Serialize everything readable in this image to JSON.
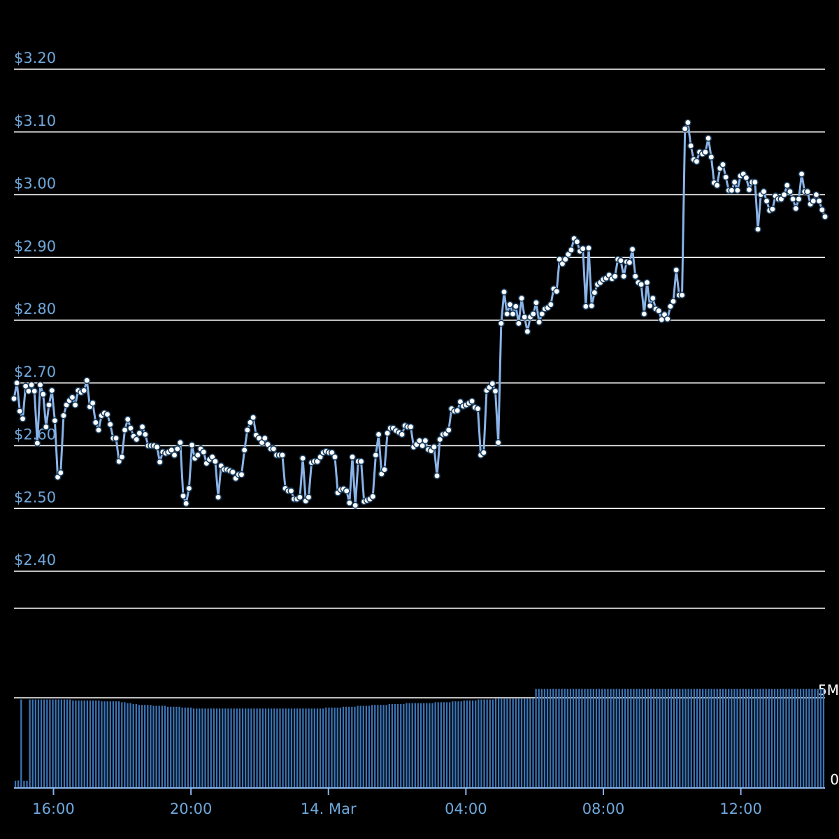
{
  "chart_data": {
    "type": "line",
    "title": "",
    "xlabel": "",
    "ylabel": "",
    "x_ticks": [
      "16:00",
      "20:00",
      "14. Mar",
      "04:00",
      "08:00",
      "12:00"
    ],
    "x_tick_hours": [
      16,
      20,
      24,
      28,
      32,
      36
    ],
    "x_range_hours": [
      14.85,
      38.45
    ],
    "grid": true,
    "price_axis": {
      "ticks": [
        "$2.40",
        "$2.50",
        "$2.60",
        "$2.70",
        "$2.80",
        "$2.90",
        "$3.00",
        "$3.10",
        "$3.20"
      ],
      "tick_values": [
        2.4,
        2.5,
        2.6,
        2.7,
        2.8,
        2.9,
        3.0,
        3.1,
        3.2
      ],
      "ylim": [
        2.35,
        3.25
      ]
    },
    "volume_axis": {
      "ticks": [
        "0",
        "5M"
      ],
      "tick_values": [
        0,
        5000000
      ],
      "ylim": [
        0,
        10000000
      ]
    },
    "colors": {
      "background": "#000000",
      "price_line": "#8ab4e8",
      "point_fill": "#ffffff",
      "volume_bar": "#3a75b8",
      "tick_label": "#6fa8dc",
      "grid": "#ffffff"
    },
    "series": [
      {
        "values": [
          2.675,
          2.7,
          2.655,
          2.643,
          2.695,
          2.687,
          2.697,
          2.687,
          2.604,
          2.697,
          2.682,
          2.63,
          2.665,
          2.688,
          2.64,
          2.55,
          2.557,
          2.648,
          2.665,
          2.672,
          2.677,
          2.665,
          2.688,
          2.685,
          2.688,
          2.704,
          2.662,
          2.668,
          2.637,
          2.625,
          2.648,
          2.652,
          2.65,
          2.634,
          2.612,
          2.612,
          2.575,
          2.582,
          2.625,
          2.642,
          2.628,
          2.615,
          2.61,
          2.62,
          2.63,
          2.618,
          2.6,
          2.6,
          2.6,
          2.598,
          2.574,
          2.59,
          2.588,
          2.59,
          2.593,
          2.585,
          2.595,
          2.605,
          2.52,
          2.508,
          2.532,
          2.601,
          2.58,
          2.585,
          2.595,
          2.59,
          2.572,
          2.578,
          2.582,
          2.575,
          2.518,
          2.568,
          2.562,
          2.562,
          2.56,
          2.558,
          2.548,
          2.554,
          2.554,
          2.593,
          2.625,
          2.637,
          2.645,
          2.617,
          2.612,
          2.605,
          2.612,
          2.602,
          2.595,
          2.595,
          2.585,
          2.585,
          2.585,
          2.532,
          2.528,
          2.528,
          2.515,
          2.515,
          2.518,
          2.58,
          2.512,
          2.518,
          2.573,
          2.575,
          2.575,
          2.582,
          2.589,
          2.591,
          2.589,
          2.589,
          2.582,
          2.525,
          2.53,
          2.531,
          2.528,
          2.509,
          2.582,
          2.505,
          2.575,
          2.575,
          2.511,
          2.513,
          2.515,
          2.519,
          2.585,
          2.618,
          2.555,
          2.562,
          2.62,
          2.628,
          2.628,
          2.624,
          2.621,
          2.618,
          2.632,
          2.63,
          2.63,
          2.598,
          2.602,
          2.608,
          2.6,
          2.608,
          2.594,
          2.592,
          2.598,
          2.552,
          2.61,
          2.618,
          2.619,
          2.625,
          2.659,
          2.655,
          2.656,
          2.67,
          2.663,
          2.665,
          2.668,
          2.671,
          2.661,
          2.659,
          2.585,
          2.589,
          2.688,
          2.693,
          2.699,
          2.687,
          2.605,
          2.795,
          2.845,
          2.81,
          2.825,
          2.81,
          2.822,
          2.795,
          2.835,
          2.805,
          2.782,
          2.805,
          2.81,
          2.828,
          2.797,
          2.81,
          2.818,
          2.82,
          2.825,
          2.85,
          2.846,
          2.897,
          2.89,
          2.897,
          2.905,
          2.912,
          2.93,
          2.925,
          2.91,
          2.914,
          2.822,
          2.915,
          2.823,
          2.844,
          2.857,
          2.86,
          2.865,
          2.867,
          2.872,
          2.866,
          2.87,
          2.897,
          2.895,
          2.87,
          2.893,
          2.892,
          2.913,
          2.87,
          2.86,
          2.857,
          2.81,
          2.86,
          2.823,
          2.835,
          2.818,
          2.815,
          2.801,
          2.809,
          2.802,
          2.822,
          2.83,
          2.88,
          2.84,
          2.84,
          3.105,
          3.115,
          3.078,
          3.056,
          3.053,
          3.068,
          3.065,
          3.068,
          3.09,
          3.06,
          3.019,
          3.015,
          3.042,
          3.048,
          3.028,
          3.007,
          3.007,
          3.02,
          3.007,
          3.03,
          3.033,
          3.027,
          3.008,
          3.02,
          3.02,
          2.945,
          3.0,
          3.005,
          2.99,
          2.975,
          2.977,
          2.998,
          2.993,
          2.993,
          3.0,
          3.015,
          3.005,
          2.993,
          2.978,
          2.993,
          3.033,
          3.005,
          3.005,
          2.985,
          2.99,
          3.0,
          2.99,
          2.976,
          2.965
        ]
      }
    ],
    "volume_values": [
      360000,
      380000,
      4900000,
      360000,
      360000,
      4900000,
      4900000,
      4900000,
      4900000,
      4900000,
      4900000,
      4900000,
      4900000,
      4900000,
      4900000,
      4900000,
      4900000,
      4900000,
      4900000,
      4900000,
      4850000,
      4850000,
      4850000,
      4850000,
      4850000,
      4850000,
      4850000,
      4850000,
      4850000,
      4850000,
      4800000,
      4800000,
      4800000,
      4800000,
      4800000,
      4800000,
      4800000,
      4750000,
      4750000,
      4700000,
      4700000,
      4650000,
      4650000,
      4600000,
      4600000,
      4600000,
      4600000,
      4600000,
      4550000,
      4550000,
      4550000,
      4550000,
      4550000,
      4500000,
      4500000,
      4500000,
      4500000,
      4500000,
      4450000,
      4450000,
      4450000,
      4450000,
      4400000,
      4400000,
      4400000,
      4400000,
      4400000,
      4400000,
      4400000,
      4400000,
      4400000,
      4400000,
      4400000,
      4400000,
      4400000,
      4400000,
      4400000,
      4400000,
      4400000,
      4400000,
      4400000,
      4400000,
      4400000,
      4400000,
      4400000,
      4400000,
      4400000,
      4400000,
      4400000,
      4400000,
      4400000,
      4400000,
      4400000,
      4400000,
      4400000,
      4400000,
      4400000,
      4400000,
      4400000,
      4400000,
      4400000,
      4400000,
      4400000,
      4400000,
      4400000,
      4400000,
      4400000,
      4400000,
      4450000,
      4450000,
      4450000,
      4450000,
      4450000,
      4450000,
      4500000,
      4500000,
      4500000,
      4500000,
      4500000,
      4550000,
      4550000,
      4550000,
      4550000,
      4550000,
      4600000,
      4600000,
      4600000,
      4600000,
      4600000,
      4600000,
      4650000,
      4650000,
      4650000,
      4650000,
      4650000,
      4650000,
      4700000,
      4700000,
      4700000,
      4700000,
      4700000,
      4700000,
      4700000,
      4700000,
      4700000,
      4700000,
      4750000,
      4750000,
      4750000,
      4750000,
      4750000,
      4750000,
      4800000,
      4800000,
      4800000,
      4800000,
      4850000,
      4850000,
      4850000,
      4850000,
      4850000,
      4900000,
      4900000,
      4900000,
      4900000,
      4900000,
      4900000,
      4950000,
      4950000,
      4950000,
      4950000,
      4950000,
      4950000,
      4950000,
      4950000,
      4950000,
      4950000,
      4950000,
      4950000,
      4950000,
      4950000,
      5500000,
      5500000,
      5500000,
      5500000,
      5500000,
      5500000,
      5500000,
      5500000,
      5500000,
      5500000,
      5500000,
      5500000,
      5500000,
      5500000,
      5500000,
      5500000,
      5500000,
      5500000,
      5500000,
      5500000,
      5500000,
      5500000,
      5500000,
      5500000,
      5500000,
      5500000,
      5500000,
      5500000,
      5500000,
      5500000,
      5500000,
      5500000,
      5500000,
      5500000,
      5500000,
      5500000,
      5500000,
      5500000,
      5500000,
      5500000,
      5500000,
      5500000,
      5500000,
      5500000,
      5500000,
      5500000,
      5500000,
      5500000,
      5500000,
      5500000,
      5500000,
      5500000,
      5500000,
      5500000,
      5500000,
      5500000,
      5500000,
      5500000,
      5500000,
      5500000,
      5500000,
      5500000,
      5500000,
      5500000,
      5500000,
      5500000,
      5500000,
      5500000,
      5500000,
      5500000,
      5500000,
      5500000,
      5500000,
      5500000,
      5500000,
      5500000,
      5500000,
      5500000,
      5500000,
      5500000,
      5500000,
      5500000,
      5500000,
      5500000,
      5500000,
      5500000,
      5500000,
      5500000,
      5500000,
      5500000,
      5500000,
      5500000,
      5500000,
      5500000,
      5500000,
      5500000,
      5500000,
      5500000,
      5500000,
      5500000,
      5500000
    ]
  }
}
